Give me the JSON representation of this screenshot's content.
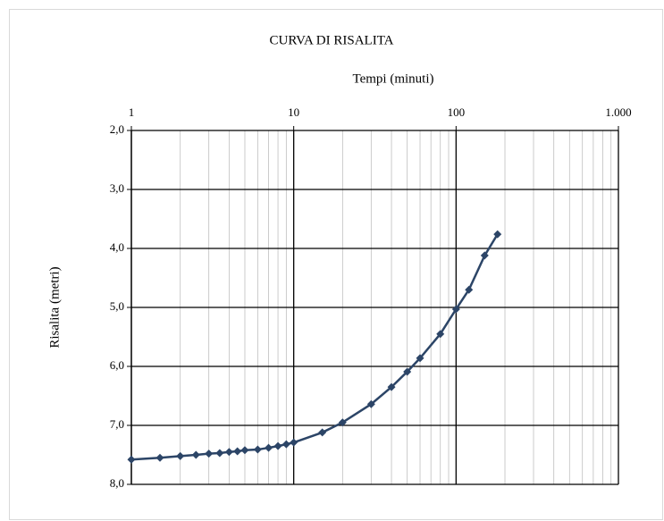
{
  "chart_data": {
    "type": "line",
    "title": "CURVA DI RISALITA",
    "x_label": "Tempi (minuti)",
    "y_label": "Risalita (metri)",
    "x_log": true,
    "y_inverted": true,
    "grid": true,
    "x_axis_position": "top",
    "xlim": [
      1,
      1000
    ],
    "xticks": [
      1,
      10,
      100,
      {
        "value": 1000,
        "label": "1.000"
      }
    ],
    "ylim": [
      2,
      8
    ],
    "yticks": [
      {
        "value": 2,
        "label": "2,0"
      },
      {
        "value": 3,
        "label": "3,0"
      },
      {
        "value": 4,
        "label": "4,0"
      },
      {
        "value": 5,
        "label": "5,0"
      },
      {
        "value": 6,
        "label": "6,0"
      },
      {
        "value": 7,
        "label": "7,0"
      },
      {
        "value": 8,
        "label": "8,0"
      }
    ],
    "series": [
      {
        "name": "Risalita",
        "color": "#2c4567",
        "x": [
          1,
          1.5,
          2,
          2.5,
          3,
          3.5,
          4,
          4.5,
          5,
          6,
          7,
          8,
          9,
          10,
          15,
          20,
          30,
          40,
          50,
          60,
          80,
          100,
          120,
          150,
          180
        ],
        "values": [
          7.58,
          7.55,
          7.52,
          7.5,
          7.48,
          7.47,
          7.45,
          7.44,
          7.42,
          7.41,
          7.38,
          7.35,
          7.32,
          7.29,
          7.12,
          6.95,
          6.64,
          6.35,
          6.09,
          5.86,
          5.45,
          5.03,
          4.7,
          4.12,
          3.76
        ]
      }
    ]
  }
}
